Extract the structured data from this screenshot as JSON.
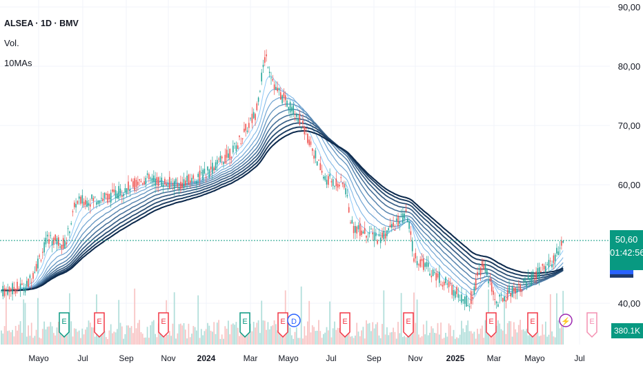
{
  "legend": {
    "symbol": "ALSEA · 1D · BMV",
    "volume": "Vol.",
    "indicator": "10MAs"
  },
  "price_axis": [
    "90,00",
    "80,00",
    "70,00",
    "60,00",
    "40,00"
  ],
  "time_axis": [
    "Mayo",
    "Jul",
    "Sep",
    "Nov",
    "2024",
    "Mar",
    "Mayo",
    "Jul",
    "Sep",
    "Nov",
    "2025",
    "Mar",
    "Mayo",
    "Jul"
  ],
  "last_price": "50,60",
  "countdown": "01:42:56",
  "volume_label": "380.1K",
  "event_markers": [
    {
      "letter": "E",
      "color": "#089981"
    },
    {
      "letter": "E",
      "color": "#f23645"
    },
    {
      "letter": "E",
      "color": "#f23645"
    },
    {
      "letter": "E",
      "color": "#089981"
    },
    {
      "letter": "E",
      "color": "#f23645"
    },
    {
      "letter": "D",
      "color": "#2962ff"
    },
    {
      "letter": "E",
      "color": "#f23645"
    },
    {
      "letter": "E",
      "color": "#f23645"
    },
    {
      "letter": "E",
      "color": "#f23645"
    },
    {
      "letter": "E",
      "color": "#f23645"
    },
    {
      "letter": "⚡",
      "color": "#9c27b0"
    },
    {
      "letter": "E",
      "color": "#f48fb1"
    }
  ],
  "colors": {
    "up": "#26a69a",
    "down": "#ef5350",
    "ma_light": "#90caf9",
    "ma_dark": "#0d2a4d",
    "last_price_line": "#089981"
  }
}
